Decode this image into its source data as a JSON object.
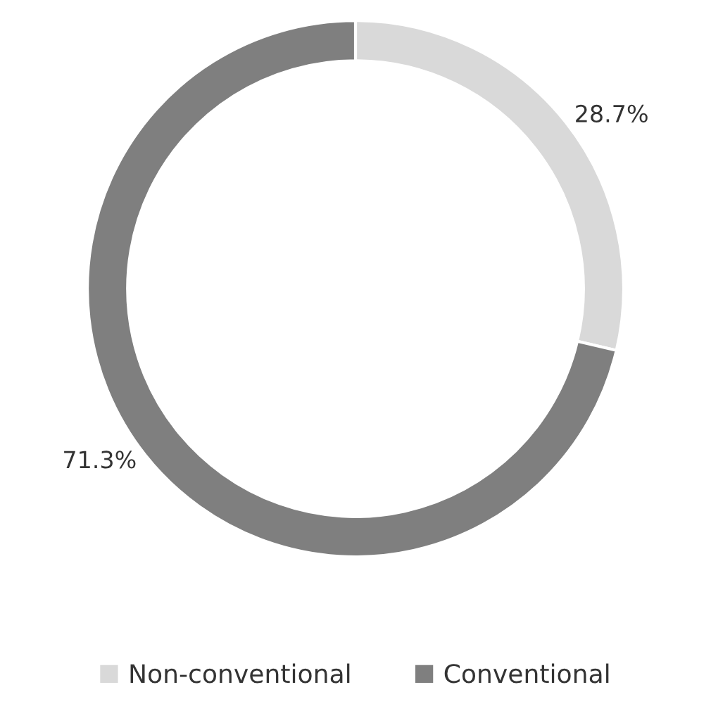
{
  "chart_data": {
    "type": "donut",
    "categories": [
      "Non-conventional",
      "Conventional"
    ],
    "values": [
      28.7,
      71.3
    ],
    "colors": [
      "#d9d9d9",
      "#7f7f7f"
    ],
    "value_labels": [
      "28.7%",
      "71.3%"
    ],
    "legend": "bottom"
  }
}
